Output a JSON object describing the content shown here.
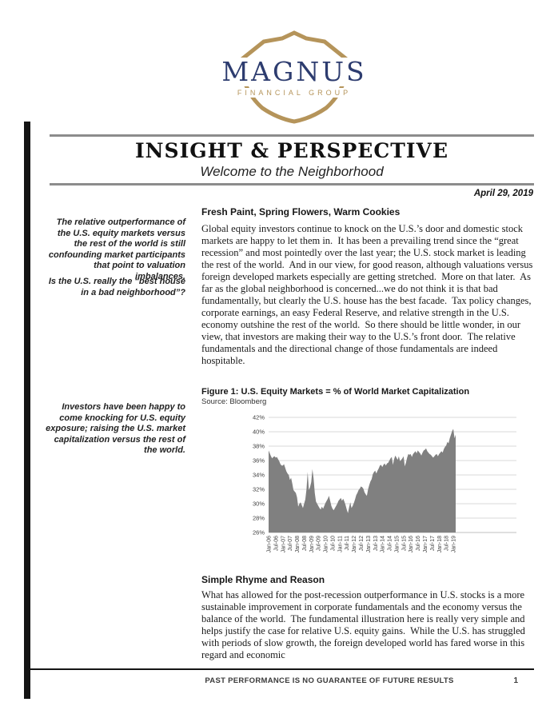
{
  "logo": {
    "name": "MAGNUS",
    "tagline": "FINANCIAL GROUP",
    "shield_color": "#b5945a",
    "name_color": "#2d3c6f"
  },
  "masthead": {
    "title": "INSIGHT & PERSPECTIVE",
    "subtitle": "Welcome to the Neighborhood"
  },
  "date_line": "April 29, 2019",
  "sidebar": {
    "notes": [
      "The relative outperformance of the U.S. equity markets versus the rest of the world is still confounding market participants that point to valuation imbalances.",
      "Is the U.S. really the “best house in a bad neighborhood”?",
      "Investors have been happy to come knocking for U.S. equity exposure; raising the U.S. market capitalization versus the rest of the world."
    ]
  },
  "article": {
    "heading1": "Fresh Paint, Spring Flowers, Warm Cookies",
    "para1": "Global equity investors continue to knock on the U.S.’s door and domestic stock markets are happy to let them in.  It has been a prevailing trend since the “great recession” and most pointedly over the last year; the U.S. stock market is leading the rest of the world.  And in our view, for good reason, although valuations versus foreign developed markets especially are getting stretched.  More on that later.  As far as the global neighborhood is concerned...we do not think it is that bad fundamentally, but clearly the U.S. house has the best facade.  Tax policy changes, corporate earnings, an easy Federal Reserve, and relative strength in the U.S. economy outshine the rest of the world.  So there should be little wonder, in our view, that investors are making their way to the U.S.’s front door.  The relative fundamentals and the directional change of those fundamentals are indeed hospitable.",
    "figure_caption": "Figure 1:  U.S. Equity Markets  =  % of World Market Capitalization",
    "figure_source": "Source: Bloomberg",
    "heading2": "Simple Rhyme and Reason",
    "para2": "What has allowed for the post-recession outperformance in U.S. stocks is a more sustainable improvement in corporate fundamentals and the economy versus the balance of the world.  The fundamental illustration here is really very simple and helps justify the case for relative U.S. equity gains.  While the U.S. has struggled with periods of slow growth, the foreign developed world has fared worse in this regard and economic"
  },
  "footer": {
    "disclaimer": "PAST PERFORMANCE IS NO GUARANTEE OF FUTURE RESULTS",
    "page_number": "1"
  },
  "chart_data": {
    "type": "area",
    "title": "U.S. Equity Markets = % of World Market Capitalization",
    "source": "Bloomberg",
    "xlabel": "",
    "ylabel": "",
    "ylim": [
      26,
      42
    ],
    "y_ticks": [
      "42%",
      "40%",
      "38%",
      "36%",
      "34%",
      "32%",
      "30%",
      "28%",
      "26%"
    ],
    "x_frequency": "monthly",
    "x_range": [
      "Jan-06",
      "Mar-19"
    ],
    "x_tick_labels": [
      "Jan-06",
      "Jul-06",
      "Jan-07",
      "Jul-07",
      "Jan-08",
      "Jul-08",
      "Jan-09",
      "Jul-09",
      "Jan-10",
      "Jul-10",
      "Jan-11",
      "Jul-11",
      "Jan-12",
      "Jul-12",
      "Jan-13",
      "Jul-13",
      "Jan-14",
      "Jul-14",
      "Jan-15",
      "Jul-15",
      "Jan-16",
      "Jul-16",
      "Jan-17",
      "Jul-17",
      "Jan-18",
      "Jul-18",
      "Jan-19"
    ],
    "x_tick_interval_months": 6,
    "grid": true,
    "legend": "none",
    "fill_color": "#808080",
    "gridline_color": "#d9d9d9",
    "values": [
      37.4,
      37.0,
      36.6,
      36.3,
      36.5,
      36.6,
      36.4,
      36.5,
      36.2,
      35.9,
      35.5,
      35.3,
      35.3,
      35.5,
      35.0,
      34.5,
      34.2,
      34.0,
      33.3,
      33.6,
      32.8,
      31.9,
      31.7,
      31.5,
      30.9,
      29.6,
      30.0,
      30.2,
      29.8,
      29.4,
      30.0,
      30.6,
      32.0,
      34.4,
      31.9,
      32.3,
      33.0,
      34.8,
      33.5,
      31.5,
      30.3,
      30.0,
      29.7,
      29.4,
      29.2,
      29.6,
      29.3,
      29.7,
      30.1,
      30.4,
      30.7,
      31.1,
      30.4,
      29.7,
      29.3,
      29.1,
      29.4,
      29.7,
      30.0,
      30.4,
      30.6,
      30.8,
      30.4,
      30.7,
      30.3,
      29.8,
      29.2,
      28.7,
      29.5,
      30.2,
      29.4,
      29.7,
      30.1,
      30.6,
      31.2,
      31.5,
      31.9,
      32.1,
      32.4,
      32.3,
      32.1,
      31.6,
      31.3,
      31.1,
      32.0,
      32.6,
      33.1,
      33.4,
      34.1,
      34.4,
      34.6,
      34.2,
      34.6,
      34.9,
      35.3,
      35.4,
      35.1,
      35.4,
      35.6,
      35.3,
      35.6,
      35.7,
      36.0,
      36.3,
      36.5,
      35.4,
      36.2,
      36.7,
      36.4,
      36.1,
      36.6,
      35.9,
      36.1,
      36.3,
      36.6,
      35.2,
      35.7,
      36.4,
      36.9,
      36.8,
      36.9,
      36.5,
      36.9,
      37.1,
      37.3,
      37.0,
      37.4,
      37.2,
      37.0,
      36.7,
      37.1,
      37.4,
      37.5,
      37.7,
      37.3,
      37.1,
      36.9,
      36.8,
      36.6,
      36.4,
      36.6,
      36.8,
      36.9,
      36.6,
      36.9,
      37.1,
      37.3,
      37.1,
      37.6,
      37.9,
      38.1,
      38.6,
      38.4,
      39.1,
      39.6,
      40.1,
      40.4,
      39.1,
      39.6
    ]
  }
}
